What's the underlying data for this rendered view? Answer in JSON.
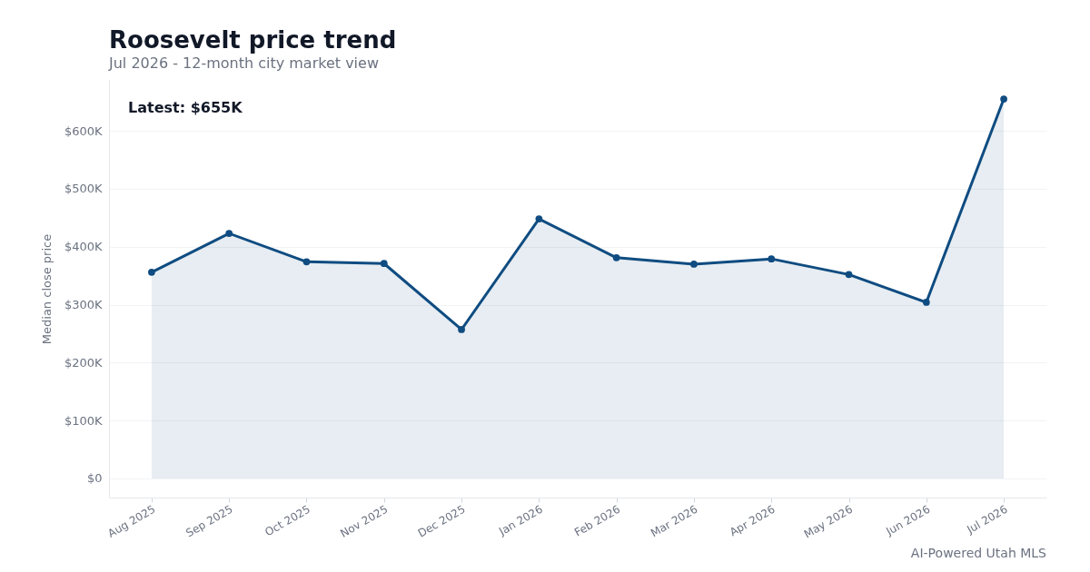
{
  "chart_data": {
    "type": "area",
    "title": "Roosevelt price trend",
    "subtitle": "Jul 2026 - 12-month city market view",
    "ylabel": "Median close price",
    "categories": [
      "Aug 2025",
      "Sep 2025",
      "Oct 2025",
      "Nov 2025",
      "Dec 2025",
      "Jan 2026",
      "Feb 2026",
      "Mar 2026",
      "Apr 2026",
      "May 2026",
      "Jun 2026",
      "Jul 2026"
    ],
    "series": [
      {
        "color": "#0f4c81",
        "values": [
          356,
          423,
          374,
          371,
          257,
          448,
          381,
          370,
          379,
          352,
          304,
          655
        ]
      }
    ],
    "ylim": [
      -33,
      688
    ],
    "yticks": [
      {
        "value": 0,
        "label": "$0"
      },
      {
        "value": 100,
        "label": "$100K"
      },
      {
        "value": 200,
        "label": "$200K"
      },
      {
        "value": 300,
        "label": "$300K"
      },
      {
        "value": 400,
        "label": "$400K"
      },
      {
        "value": 500,
        "label": "$500K"
      },
      {
        "value": 600,
        "label": "$600K"
      }
    ],
    "grid": "y",
    "marker": "circle",
    "line_style": "solid",
    "annotations": [
      "Latest: $655K",
      "AI-Powered Utah MLS"
    ]
  }
}
